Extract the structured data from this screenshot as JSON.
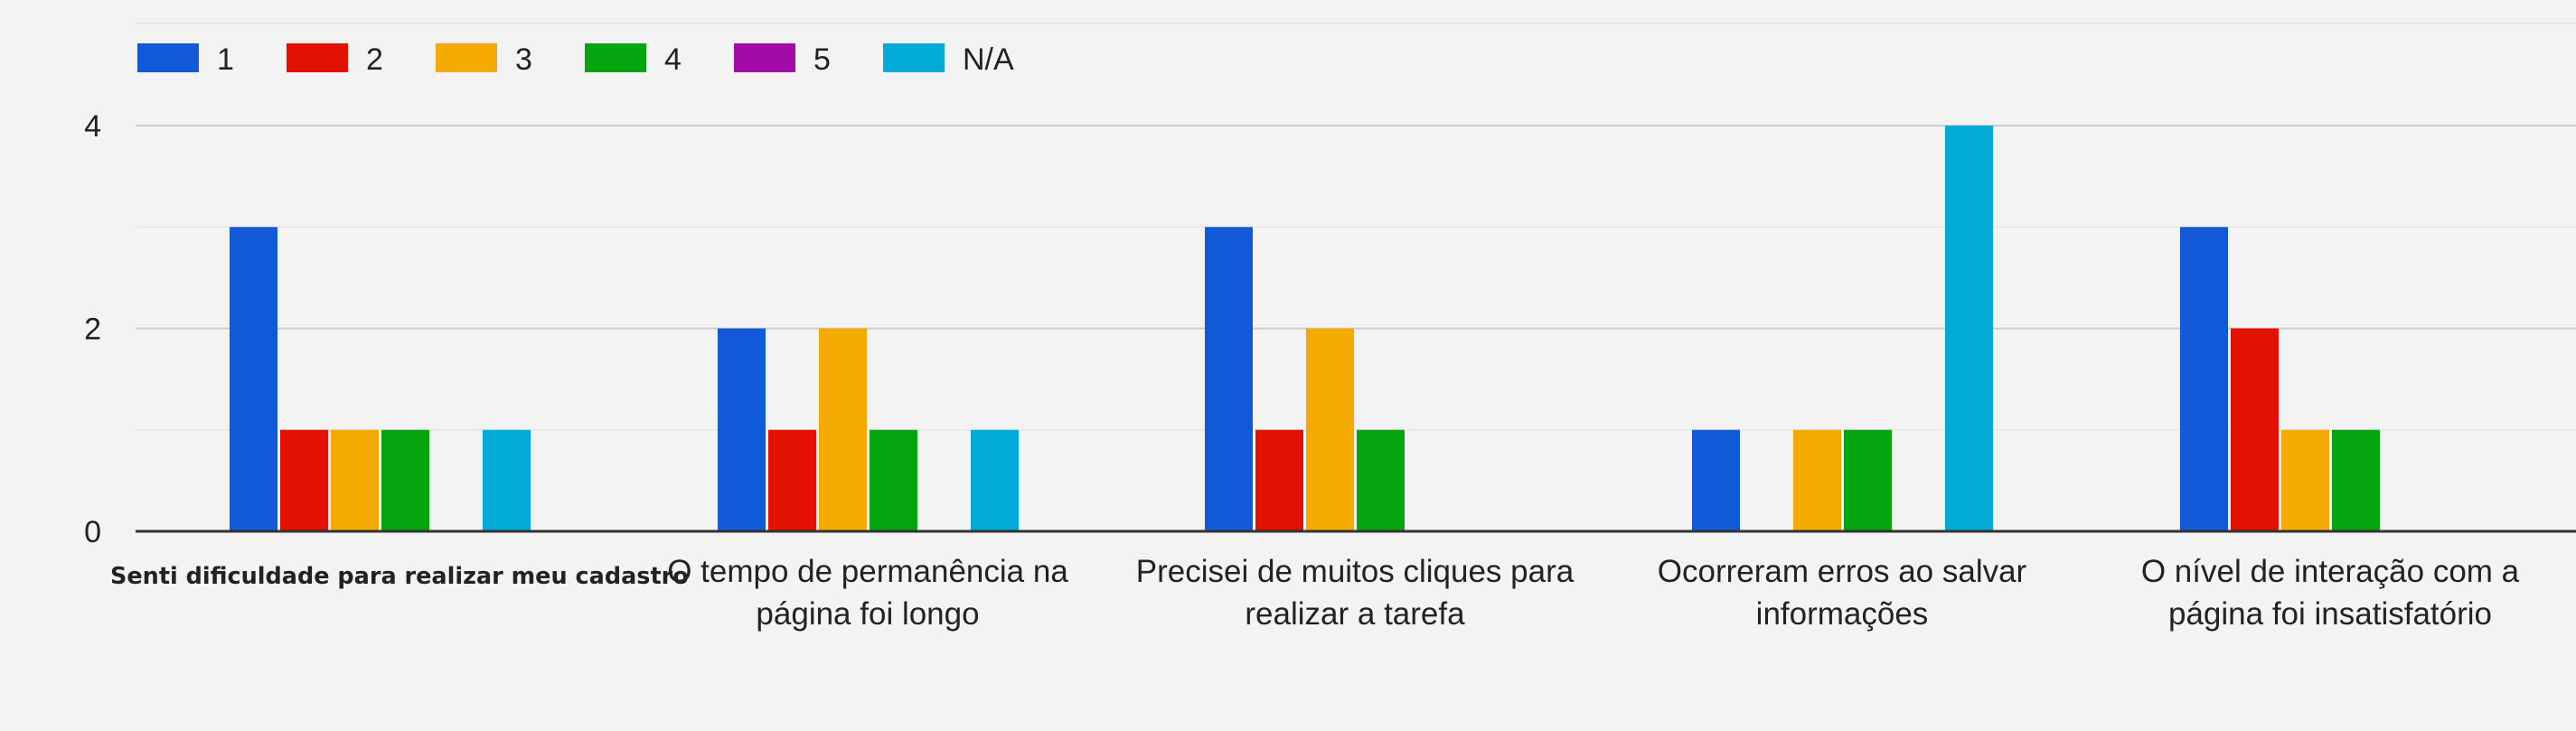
{
  "chart_data": {
    "type": "bar",
    "title": "",
    "xlabel": "",
    "ylabel": "",
    "ylim": [
      0,
      4
    ],
    "yticks": [
      0,
      2,
      4
    ],
    "grid": true,
    "legend_position": "top-left",
    "categories": [
      "Senti dificuldade para realizar meu cadastro",
      "O tempo de permanência na página foi longo",
      "Precisei de muitos cliques para realizar a tarefa",
      "Ocorreram erros ao salvar informações",
      "O nível de interação com a página foi insatisfatório"
    ],
    "category_lines": [
      [
        "Senti dificuldade para realizar meu cadastro"
      ],
      [
        "O tempo de permanência na",
        "página foi longo"
      ],
      [
        "Precisei de muitos cliques para",
        "realizar a tarefa"
      ],
      [
        "Ocorreram erros ao salvar",
        "informações"
      ],
      [
        "O nível de interação com a",
        "página foi insatisfatório"
      ]
    ],
    "series": [
      {
        "name": "1",
        "color": "#1159d6",
        "values": [
          3,
          2,
          3,
          1,
          3
        ]
      },
      {
        "name": "2",
        "color": "#e31102",
        "values": [
          1,
          1,
          1,
          0,
          2
        ]
      },
      {
        "name": "3",
        "color": "#f4aa02",
        "values": [
          1,
          2,
          2,
          1,
          1
        ]
      },
      {
        "name": "4",
        "color": "#04a50e",
        "values": [
          1,
          1,
          1,
          1,
          1
        ]
      },
      {
        "name": "5",
        "color": "#a30aa8",
        "values": [
          0,
          0,
          0,
          0,
          0
        ]
      },
      {
        "name": "N/A",
        "color": "#02aad8",
        "values": [
          1,
          1,
          0,
          4,
          0
        ]
      }
    ]
  }
}
